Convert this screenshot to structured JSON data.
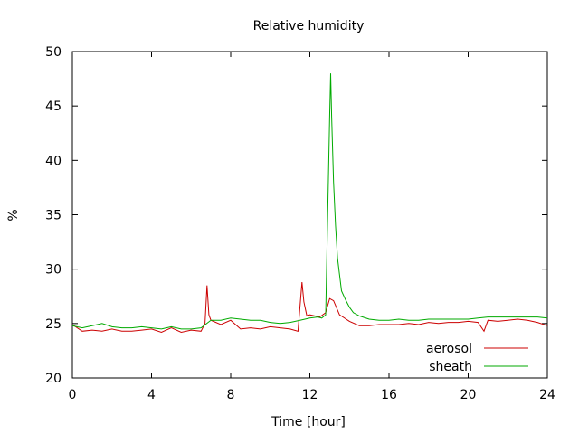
{
  "chart_data": {
    "type": "line",
    "title": "Relative humidity",
    "xlabel": "Time [hour]",
    "ylabel": "%",
    "xlim": [
      0,
      24
    ],
    "ylim": [
      20,
      50
    ],
    "xticks": [
      0,
      4,
      8,
      12,
      16,
      20,
      24
    ],
    "yticks": [
      20,
      25,
      30,
      35,
      40,
      45,
      50
    ],
    "grid": false,
    "legend_position": "bottom-right",
    "series": [
      {
        "name": "aerosol",
        "color": "#cc0000",
        "x": [
          0,
          0.5,
          1,
          1.5,
          2,
          2.5,
          3,
          3.5,
          4,
          4.5,
          5,
          5.5,
          6,
          6.5,
          6.7,
          6.8,
          6.9,
          7,
          7.5,
          8,
          8.5,
          9,
          9.5,
          10,
          10.5,
          11,
          11.4,
          11.6,
          11.7,
          11.85,
          12,
          12.5,
          12.8,
          13,
          13.2,
          13.5,
          14,
          14.5,
          15,
          15.5,
          16,
          16.5,
          17,
          17.5,
          18,
          18.5,
          19,
          19.5,
          20,
          20.5,
          20.8,
          21,
          21.5,
          22,
          22.5,
          23,
          23.5,
          24
        ],
        "y": [
          24.9,
          24.3,
          24.4,
          24.3,
          24.5,
          24.3,
          24.3,
          24.4,
          24.5,
          24.2,
          24.6,
          24.2,
          24.4,
          24.3,
          25.0,
          28.5,
          25.8,
          25.3,
          24.9,
          25.3,
          24.5,
          24.6,
          24.5,
          24.7,
          24.6,
          24.5,
          24.3,
          28.8,
          27.0,
          25.7,
          25.8,
          25.6,
          26.0,
          27.3,
          27.1,
          25.8,
          25.2,
          24.8,
          24.8,
          24.9,
          24.9,
          24.9,
          25.0,
          24.9,
          25.1,
          25.0,
          25.1,
          25.1,
          25.2,
          25.1,
          24.3,
          25.3,
          25.2,
          25.3,
          25.4,
          25.3,
          25.1,
          24.8
        ]
      },
      {
        "name": "sheath",
        "color": "#00aa00",
        "x": [
          0,
          0.5,
          1,
          1.5,
          2,
          2.5,
          3,
          3.5,
          4,
          4.5,
          5,
          5.5,
          6,
          6.5,
          7,
          7.5,
          8,
          8.5,
          9,
          9.5,
          10,
          10.5,
          11,
          11.5,
          12,
          12.4,
          12.6,
          12.8,
          12.9,
          13.0,
          13.05,
          13.1,
          13.2,
          13.3,
          13.4,
          13.5,
          13.6,
          13.8,
          14,
          14.2,
          14.5,
          15,
          15.5,
          16,
          16.5,
          17,
          17.5,
          18,
          18.5,
          19,
          19.5,
          20,
          20.5,
          21,
          21.5,
          22,
          22.5,
          23,
          23.5,
          24
        ],
        "y": [
          24.8,
          24.6,
          24.8,
          25.0,
          24.7,
          24.6,
          24.6,
          24.7,
          24.6,
          24.5,
          24.7,
          24.5,
          24.5,
          24.6,
          25.3,
          25.3,
          25.5,
          25.4,
          25.3,
          25.3,
          25.1,
          25.0,
          25.1,
          25.3,
          25.5,
          25.6,
          25.5,
          25.8,
          35.0,
          44.0,
          48.0,
          44.0,
          38.0,
          34.0,
          31.0,
          29.5,
          28.0,
          27.2,
          26.5,
          26.0,
          25.7,
          25.4,
          25.3,
          25.3,
          25.4,
          25.3,
          25.3,
          25.4,
          25.4,
          25.4,
          25.4,
          25.4,
          25.5,
          25.6,
          25.6,
          25.6,
          25.6,
          25.6,
          25.6,
          25.5
        ]
      }
    ]
  }
}
